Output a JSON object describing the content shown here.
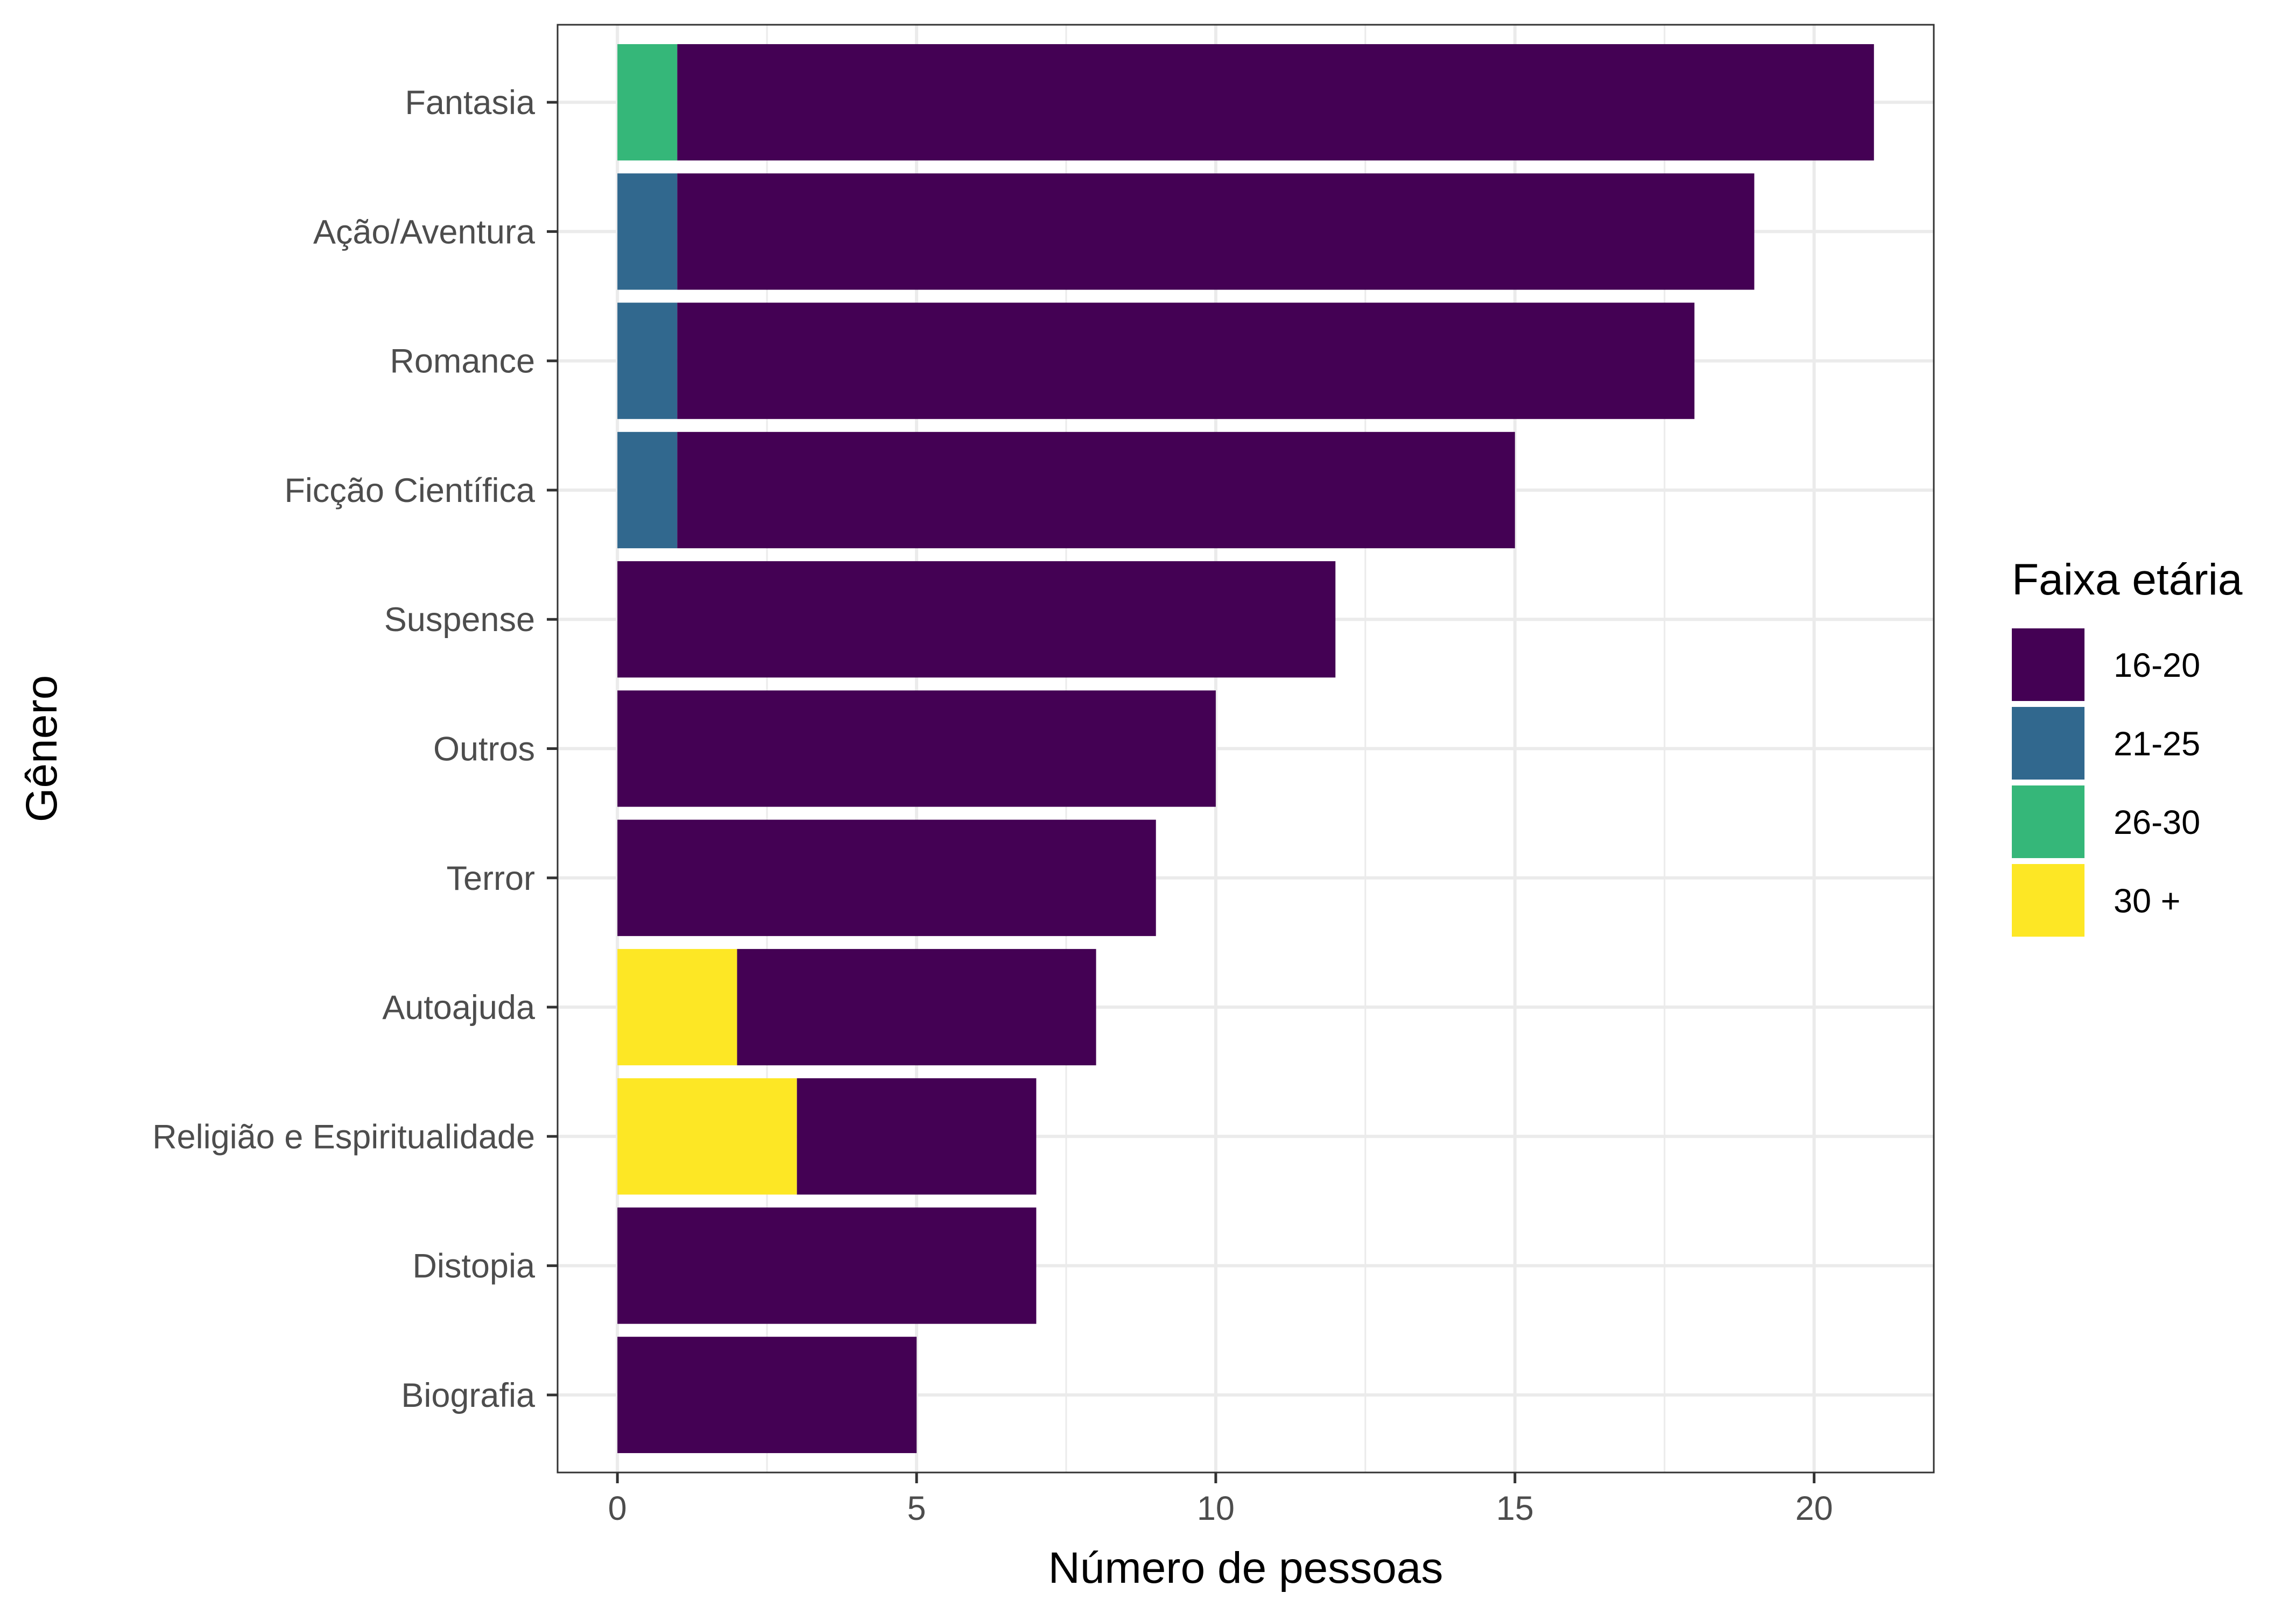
{
  "chart_data": {
    "type": "bar",
    "orientation": "horizontal",
    "stacked": true,
    "xlabel": "Número de pessoas",
    "ylabel": "Gênero",
    "xlim": [
      -1,
      22
    ],
    "xticks": [
      0,
      5,
      10,
      15,
      20
    ],
    "grid": true,
    "categories": [
      "Fantasia",
      "Ação/Aventura",
      "Romance",
      "Ficção Científica",
      "Suspense",
      "Outros",
      "Terror",
      "Autoajuda",
      "Religião e Espiritualidade",
      "Distopia",
      "Biografia"
    ],
    "legend": {
      "title": "Faixa etária",
      "position": "right",
      "entries": [
        "16-20",
        "21-25",
        "26-30",
        "30 +"
      ]
    },
    "stack_order": [
      "30 +",
      "26-30",
      "21-25",
      "16-20"
    ],
    "series": [
      {
        "name": "16-20",
        "color": "#440154",
        "values": [
          20,
          18,
          17,
          14,
          12,
          10,
          9,
          6,
          4,
          7,
          5
        ]
      },
      {
        "name": "21-25",
        "color": "#31688E",
        "values": [
          0,
          1,
          1,
          1,
          0,
          0,
          0,
          0,
          0,
          0,
          0
        ]
      },
      {
        "name": "26-30",
        "color": "#35B779",
        "values": [
          1,
          0,
          0,
          0,
          0,
          0,
          0,
          0,
          0,
          0,
          0
        ]
      },
      {
        "name": "30 +",
        "color": "#FDE725",
        "values": [
          0,
          0,
          0,
          0,
          0,
          0,
          0,
          2,
          3,
          0,
          0
        ]
      }
    ]
  }
}
